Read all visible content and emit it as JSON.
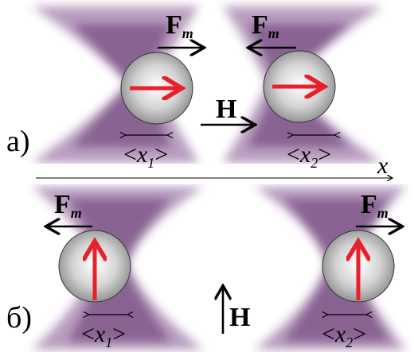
{
  "panel_a": {
    "label": "а)",
    "force_left": "F",
    "force_left_sub": "m",
    "force_right": "F",
    "force_right_sub": "m",
    "field": "H",
    "pos_left": {
      "open": "<",
      "var": "x",
      "sub": "1",
      "close": ">"
    },
    "pos_right": {
      "open": "<",
      "var": "x",
      "sub": "2",
      "close": ">"
    },
    "axis": "x"
  },
  "panel_b": {
    "label": "б)",
    "force_left": "F",
    "force_left_sub": "m",
    "force_right": "F",
    "force_right_sub": "m",
    "field": "H",
    "pos_left": {
      "open": "<",
      "var": "x",
      "sub": "1",
      "close": ">"
    },
    "pos_right": {
      "open": "<",
      "var": "x",
      "sub": "2",
      "close": ">"
    }
  },
  "colors": {
    "beam": "#6a2f78",
    "moment_arrow": "#e8202a",
    "arrow": "#000000",
    "sphere_light": "#ffffff",
    "sphere_dark": "#8a8a8a"
  }
}
